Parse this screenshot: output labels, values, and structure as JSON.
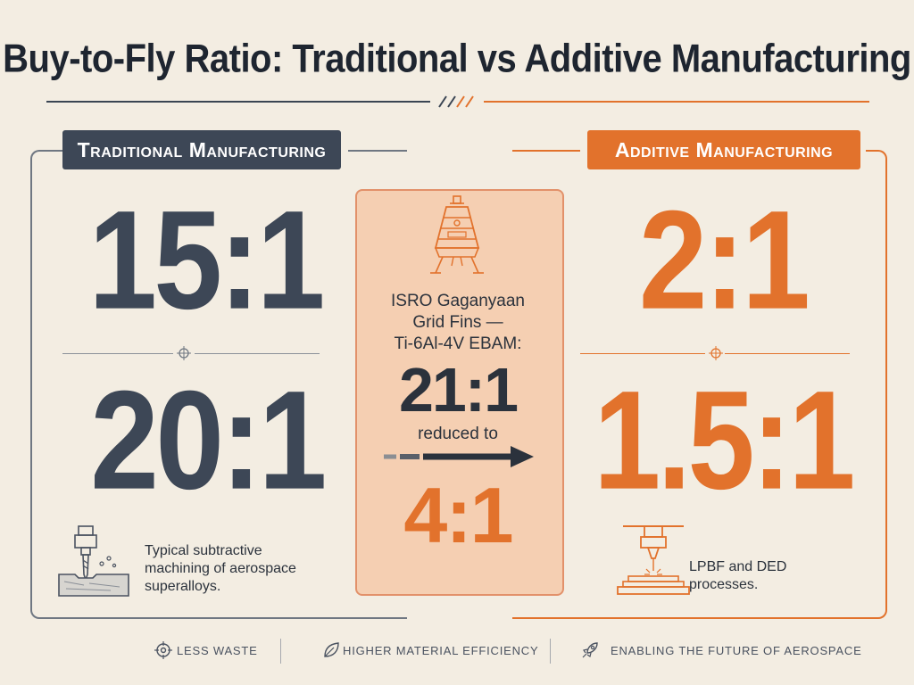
{
  "title": "Buy-to-Fly Ratio: Traditional vs Additive Manufacturing",
  "colors": {
    "navy": "#3d4756",
    "orange": "#e2722c",
    "background": "#f3ede2",
    "card": "#f5cfb2"
  },
  "traditional": {
    "heading": "Traditional Manufacturing",
    "ratio_top": "15:1",
    "ratio_bottom": "20:1",
    "icon": "milling-machine-icon",
    "caption": "Typical subtractive machining of aerospace superalloys."
  },
  "additive": {
    "heading": "Additive Manufacturing",
    "ratio_top": "2:1",
    "ratio_bottom": "1.5:1",
    "icon": "3d-printer-icon",
    "caption": "LPBF and DED processes."
  },
  "case_study": {
    "icon": "space-capsule-icon",
    "line1": "ISRO Gaganyaan",
    "line2": "Grid Fins —",
    "line3": "Ti-6Al-4V EBAM:",
    "before": "21:1",
    "reduced_label": "reduced to",
    "after": "4:1"
  },
  "footer": [
    {
      "icon": "target-icon",
      "label": "LESS WASTE"
    },
    {
      "icon": "leaf-icon",
      "label": "HIGHER MATERIAL EFFICIENCY"
    },
    {
      "icon": "rocket-icon",
      "label": "ENABLING THE FUTURE OF AEROSPACE"
    }
  ]
}
